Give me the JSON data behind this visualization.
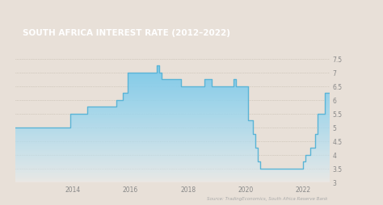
{
  "title": "SOUTH AFRICA INTEREST RATE (2012–2022)",
  "title_bg": "#9B5B2E",
  "title_color": "#ffffff",
  "source_text": "Source: TradingEconomics, South Africa Reserve Bank",
  "bg_color": "#e8e0d8",
  "plot_bg": "#e8e0d8",
  "line_color": "#5ab4d6",
  "ylim": [
    3.0,
    7.5
  ],
  "yticks": [
    3.0,
    3.5,
    4.0,
    4.5,
    5.0,
    5.5,
    6.0,
    6.5,
    7.0,
    7.5
  ],
  "xtick_labels": [
    "2014",
    "2016",
    "2018",
    "2020",
    "2022"
  ],
  "xtick_positions": [
    2014,
    2016,
    2018,
    2020,
    2022
  ],
  "dates_values": [
    [
      2012.0,
      5.0
    ],
    [
      2013.5,
      5.0
    ],
    [
      2013.917,
      5.5
    ],
    [
      2014.417,
      5.5
    ],
    [
      2014.5,
      5.75
    ],
    [
      2015.417,
      5.75
    ],
    [
      2015.5,
      6.0
    ],
    [
      2015.75,
      6.25
    ],
    [
      2015.917,
      7.0
    ],
    [
      2016.75,
      7.0
    ],
    [
      2016.917,
      7.25
    ],
    [
      2017.0,
      7.0
    ],
    [
      2017.083,
      6.75
    ],
    [
      2017.583,
      6.75
    ],
    [
      2017.75,
      6.5
    ],
    [
      2018.0,
      6.5
    ],
    [
      2018.583,
      6.75
    ],
    [
      2018.833,
      6.5
    ],
    [
      2019.0,
      6.5
    ],
    [
      2019.583,
      6.75
    ],
    [
      2019.667,
      6.5
    ],
    [
      2020.0,
      6.5
    ],
    [
      2020.083,
      5.25
    ],
    [
      2020.25,
      4.75
    ],
    [
      2020.333,
      4.25
    ],
    [
      2020.417,
      3.75
    ],
    [
      2020.5,
      3.5
    ],
    [
      2021.917,
      3.5
    ],
    [
      2022.0,
      3.75
    ],
    [
      2022.083,
      4.0
    ],
    [
      2022.25,
      4.25
    ],
    [
      2022.417,
      4.75
    ],
    [
      2022.5,
      5.5
    ],
    [
      2022.75,
      6.25
    ],
    [
      2022.917,
      6.25
    ]
  ]
}
